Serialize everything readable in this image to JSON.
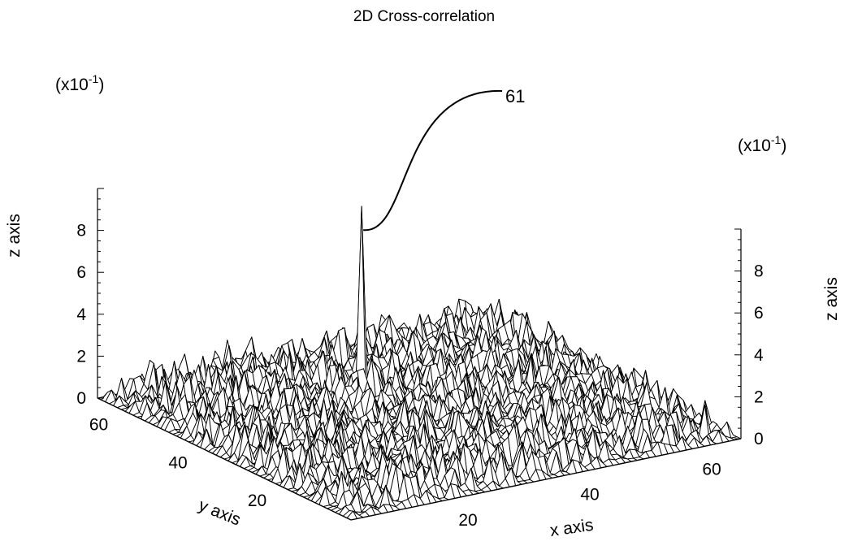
{
  "chart_data": {
    "type": "surface",
    "title": "2D Cross-correlation",
    "xlabel": "x axis",
    "ylabel": "y axis",
    "zlabel": "z axis",
    "z_multiplier_label": "(x10",
    "z_multiplier_exp": "-1",
    "z_multiplier_close": ")",
    "x_ticks": [
      "20",
      "40",
      "60"
    ],
    "x_tick_values": [
      20,
      40,
      60
    ],
    "y_ticks": [
      "20",
      "40",
      "60"
    ],
    "y_tick_values": [
      20,
      40,
      60
    ],
    "z_ticks_left": [
      "0",
      "2",
      "4",
      "6",
      "8"
    ],
    "z_ticks_right": [
      "0",
      "2",
      "4",
      "6",
      "8"
    ],
    "z_tick_values": [
      0,
      2,
      4,
      6,
      8
    ],
    "xlim": [
      0,
      64
    ],
    "ylim": [
      0,
      64
    ],
    "zlim": [
      0,
      10
    ],
    "grid_size": 64,
    "noise_level_max": 1.5,
    "peak": {
      "x": 31,
      "y": 45,
      "z": 9.0
    },
    "reference_label": "61"
  }
}
